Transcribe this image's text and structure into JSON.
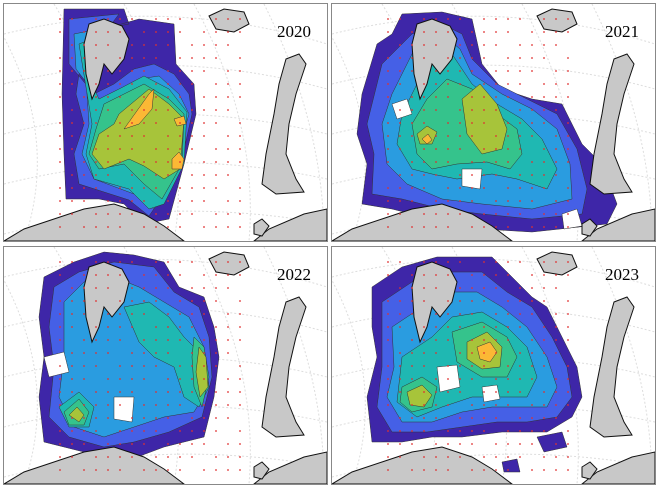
{
  "panels": [
    {
      "year": "2020"
    },
    {
      "year": "2021"
    },
    {
      "year": "2022"
    },
    {
      "year": "2023"
    }
  ],
  "colormap": [
    "#3e26a8",
    "#4560e6",
    "#2a9ce0",
    "#1fb8b2",
    "#35c38c",
    "#a7c43a",
    "#fbb835"
  ],
  "land_color": "#c8c8c8",
  "station_color": "#e03030"
}
